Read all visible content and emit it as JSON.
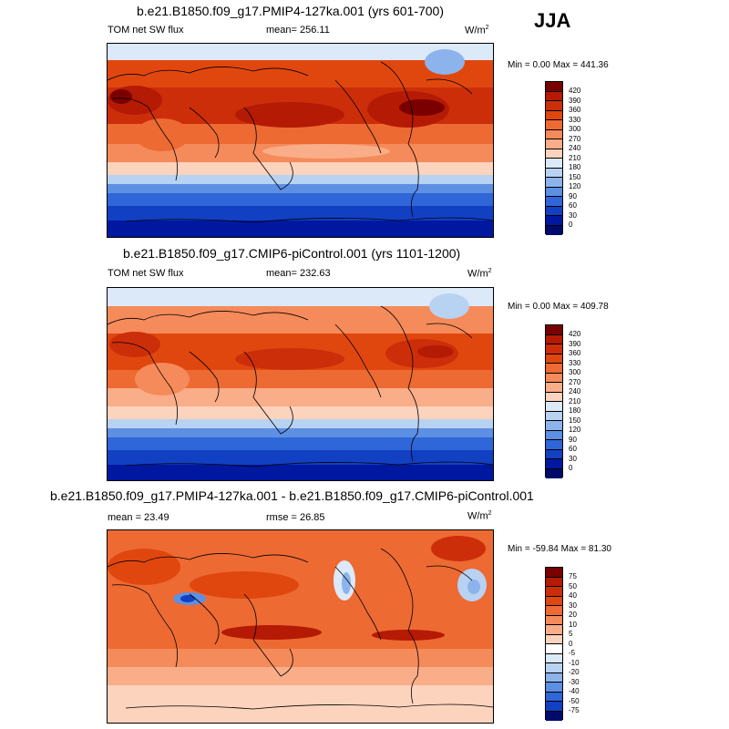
{
  "season": "JJA",
  "units_main": "W/m",
  "units_sup": "2",
  "panels": [
    {
      "title": "b.e21.B1850.f09_g17.PMIP4-127ka.001 (yrs 601-700)",
      "left_label": "TOM net SW flux",
      "center_label": "mean= 256.11",
      "minmax": "Min =   0.00 Max = 441.36",
      "colorbar_labels": [
        "420",
        "390",
        "360",
        "330",
        "300",
        "270",
        "240",
        "210",
        "180",
        "150",
        "120",
        "90",
        "60",
        "30",
        "0"
      ]
    },
    {
      "title": "b.e21.B1850.f09_g17.CMIP6-piControl.001 (yrs 1101-1200)",
      "left_label": "TOM net SW flux",
      "center_label": "mean= 232.63",
      "minmax": "Min =   0.00 Max = 409.78",
      "colorbar_labels": [
        "420",
        "390",
        "360",
        "330",
        "300",
        "270",
        "240",
        "210",
        "180",
        "150",
        "120",
        "90",
        "60",
        "30",
        "0"
      ]
    },
    {
      "title": "b.e21.B1850.f09_g17.PMIP4-127ka.001 - b.e21.B1850.f09_g17.CMIP6-piControl.001",
      "left_label": "mean =  23.49",
      "center_label": "rmse =  26.85",
      "minmax": "Min = -59.84 Max =  81.30",
      "colorbar_labels": [
        "75",
        "50",
        "40",
        "30",
        "20",
        "10",
        "5",
        "0",
        "-5",
        "-10",
        "-20",
        "-30",
        "-40",
        "-50",
        "-75"
      ]
    }
  ],
  "colors": {
    "abs_scale": [
      "#7a0000",
      "#b51a05",
      "#cc2e0a",
      "#e0470e",
      "#ed6a33",
      "#f58a5b",
      "#f9ad88",
      "#fcd3bd",
      "#dbe9f8",
      "#b8d2f2",
      "#8db3ec",
      "#5d8fe3",
      "#2f66d8",
      "#1240c2",
      "#0018a0",
      "#000a6b"
    ],
    "diff_scale": [
      "#7a0000",
      "#b51a05",
      "#cc2e0a",
      "#e0470e",
      "#ed6a33",
      "#f58a5b",
      "#f9ad88",
      "#fcd3bd",
      "#ffffff",
      "#dbe9f8",
      "#b8d2f2",
      "#8db3ec",
      "#5d8fe3",
      "#2f66d8",
      "#1240c2",
      "#000a6b"
    ]
  }
}
